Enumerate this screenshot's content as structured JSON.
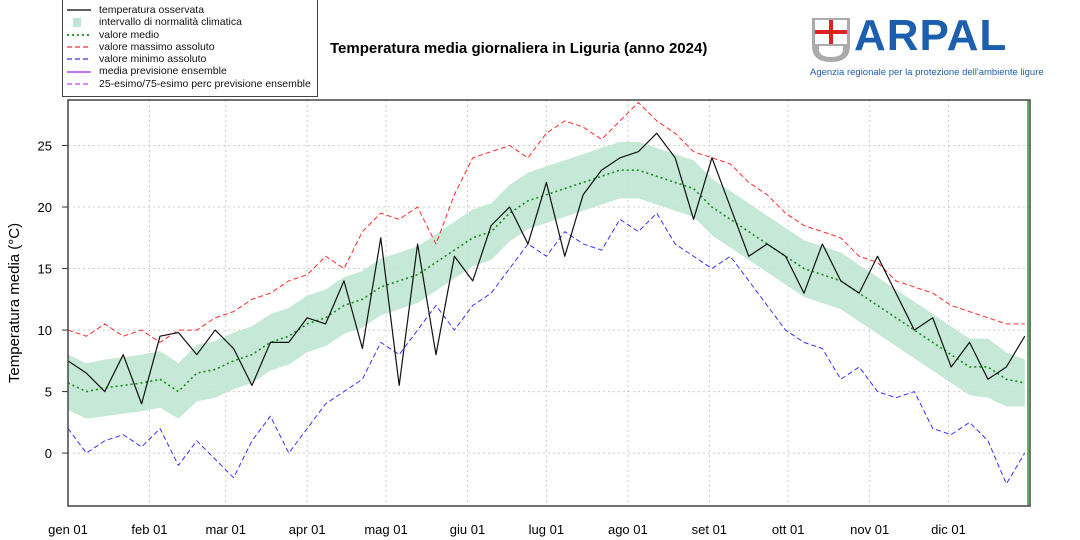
{
  "header": {
    "title": "Temperatura media giornaliera in Liguria (anno 2024)",
    "logo_text": "ARPAL",
    "logo_tagline": "Agenzia regionale per la protezione dell'ambiente ligure"
  },
  "legend": [
    {
      "label": "temperatura osservata",
      "color": "#000000",
      "style": "solid"
    },
    {
      "label": "intervallo di normalità climatica",
      "color": "#bfe6d3",
      "style": "box"
    },
    {
      "label": "valore medio",
      "color": "#1a8a1a",
      "style": "dotted"
    },
    {
      "label": "valore massimo assoluto",
      "color": "#ff2a2a",
      "style": "dashed"
    },
    {
      "label": "valore minimo assoluto",
      "color": "#3333ff",
      "style": "dashed"
    },
    {
      "label": "media previsione ensemble",
      "color": "#a020f0",
      "style": "solid"
    },
    {
      "label": "25-esimo/75-esimo perc previsione ensemble",
      "color": "#cc44ee",
      "style": "dashed"
    }
  ],
  "chart_data": {
    "type": "line",
    "title": "Temperatura media giornaliera in Liguria (anno 2024)",
    "xlabel": "",
    "ylabel": "Temperatura media (°C)",
    "xlim": [
      0,
      366
    ],
    "ylim": [
      -4.3,
      28.7
    ],
    "grid": true,
    "legend_position": "top-left",
    "x_ticks": [
      {
        "day": 0,
        "label": "gen 01"
      },
      {
        "day": 31,
        "label": "feb 01"
      },
      {
        "day": 60,
        "label": "mar 01"
      },
      {
        "day": 91,
        "label": "apr 01"
      },
      {
        "day": 121,
        "label": "mag 01"
      },
      {
        "day": 152,
        "label": "giu 01"
      },
      {
        "day": 182,
        "label": "lug 01"
      },
      {
        "day": 213,
        "label": "ago 01"
      },
      {
        "day": 244,
        "label": "set 01"
      },
      {
        "day": 274,
        "label": "ott 01"
      },
      {
        "day": 305,
        "label": "nov 01"
      },
      {
        "day": 335,
        "label": "dic 01"
      }
    ],
    "y_ticks": [
      0,
      5,
      10,
      15,
      20,
      25
    ],
    "x_step_days": 7,
    "series": [
      {
        "name": "temperatura osservata",
        "values": [
          7.5,
          6.5,
          5,
          8,
          4,
          9.5,
          9.8,
          8,
          10,
          8.5,
          5.5,
          9,
          9,
          11,
          10.5,
          14,
          8.5,
          17.5,
          5.5,
          17,
          8,
          16,
          14,
          18.5,
          20,
          17,
          22,
          16,
          21,
          23,
          24,
          24.5,
          26,
          24,
          19,
          24,
          20,
          16,
          17,
          16,
          13,
          17,
          14,
          13,
          16,
          13,
          10,
          11,
          7,
          9,
          6,
          7,
          9.5
        ]
      },
      {
        "name": "valore medio",
        "values": [
          5.7,
          5,
          5.3,
          5.5,
          5.7,
          6,
          5,
          6.5,
          6.8,
          7.5,
          8,
          9,
          9.5,
          10.5,
          11,
          12,
          12.5,
          13.5,
          14,
          14.5,
          15.5,
          16.5,
          17.5,
          18,
          19.5,
          20.5,
          21,
          21.5,
          22,
          22.5,
          23,
          23,
          22.5,
          22,
          21.5,
          20,
          19,
          18,
          17,
          16,
          15,
          14.5,
          14,
          13,
          12,
          11,
          10,
          9,
          8,
          7,
          7,
          6,
          5.7
        ]
      },
      {
        "name": "intervallo di normalità climatica (inf)",
        "values": [
          3.5,
          2.8,
          3,
          3.2,
          3.4,
          3.7,
          2.8,
          4.2,
          4.5,
          5.2,
          5.7,
          6.7,
          7.2,
          8.2,
          8.7,
          9.7,
          10.2,
          11.2,
          11.7,
          12.2,
          13.2,
          14.2,
          15.2,
          15.7,
          17.2,
          18.2,
          18.7,
          19.2,
          19.7,
          20.2,
          20.7,
          20.7,
          20.2,
          19.7,
          19.2,
          17.7,
          16.7,
          15.7,
          14.7,
          13.7,
          12.7,
          12.2,
          11.7,
          10.7,
          9.7,
          8.7,
          7.7,
          6.7,
          5.7,
          4.7,
          4.5,
          3.8,
          3.8
        ]
      },
      {
        "name": "intervallo di normalità climatica (sup)",
        "values": [
          8,
          7.3,
          7.6,
          7.8,
          8,
          8.3,
          7.3,
          8.8,
          9.1,
          9.8,
          10.3,
          11.3,
          11.8,
          12.8,
          13.3,
          14.3,
          14.8,
          15.8,
          16.3,
          16.8,
          17.8,
          18.8,
          19.8,
          20.3,
          21.8,
          22.8,
          23.3,
          23.8,
          24.3,
          24.8,
          25.3,
          25.3,
          24.8,
          24.3,
          23.8,
          22.3,
          21.3,
          20.3,
          19.3,
          18.3,
          17.3,
          16.8,
          16.3,
          15.3,
          14.3,
          13.3,
          12.3,
          11.3,
          10.3,
          9.3,
          9.3,
          8.2,
          7.6
        ]
      },
      {
        "name": "valore massimo assoluto",
        "values": [
          10,
          9.5,
          10.5,
          9.5,
          10,
          9,
          10,
          10,
          11,
          11.5,
          12.5,
          13,
          14,
          14.5,
          16,
          15,
          18,
          19.5,
          19,
          20,
          17,
          21,
          24,
          24.5,
          25,
          24,
          26,
          27,
          26.5,
          25.5,
          27,
          28.5,
          27,
          26,
          24.5,
          24,
          23.5,
          22,
          21,
          19.5,
          18.5,
          18,
          17.5,
          16,
          15.5,
          14,
          13.5,
          13,
          12,
          11.5,
          11,
          10.5,
          10.5
        ]
      },
      {
        "name": "valore minimo assoluto",
        "values": [
          2,
          0,
          1,
          1.5,
          0.5,
          2,
          -1,
          1,
          -0.5,
          -2,
          1,
          3,
          0,
          2,
          4,
          5,
          6,
          9,
          8,
          10,
          12,
          10,
          12,
          13,
          15,
          17,
          16,
          18,
          17,
          16.5,
          19,
          18,
          19.5,
          17,
          16,
          15,
          16,
          14,
          12,
          10,
          9,
          8.5,
          6,
          7,
          5,
          4.5,
          5,
          2,
          1.5,
          2.5,
          1,
          -2.5,
          0
        ]
      }
    ]
  }
}
